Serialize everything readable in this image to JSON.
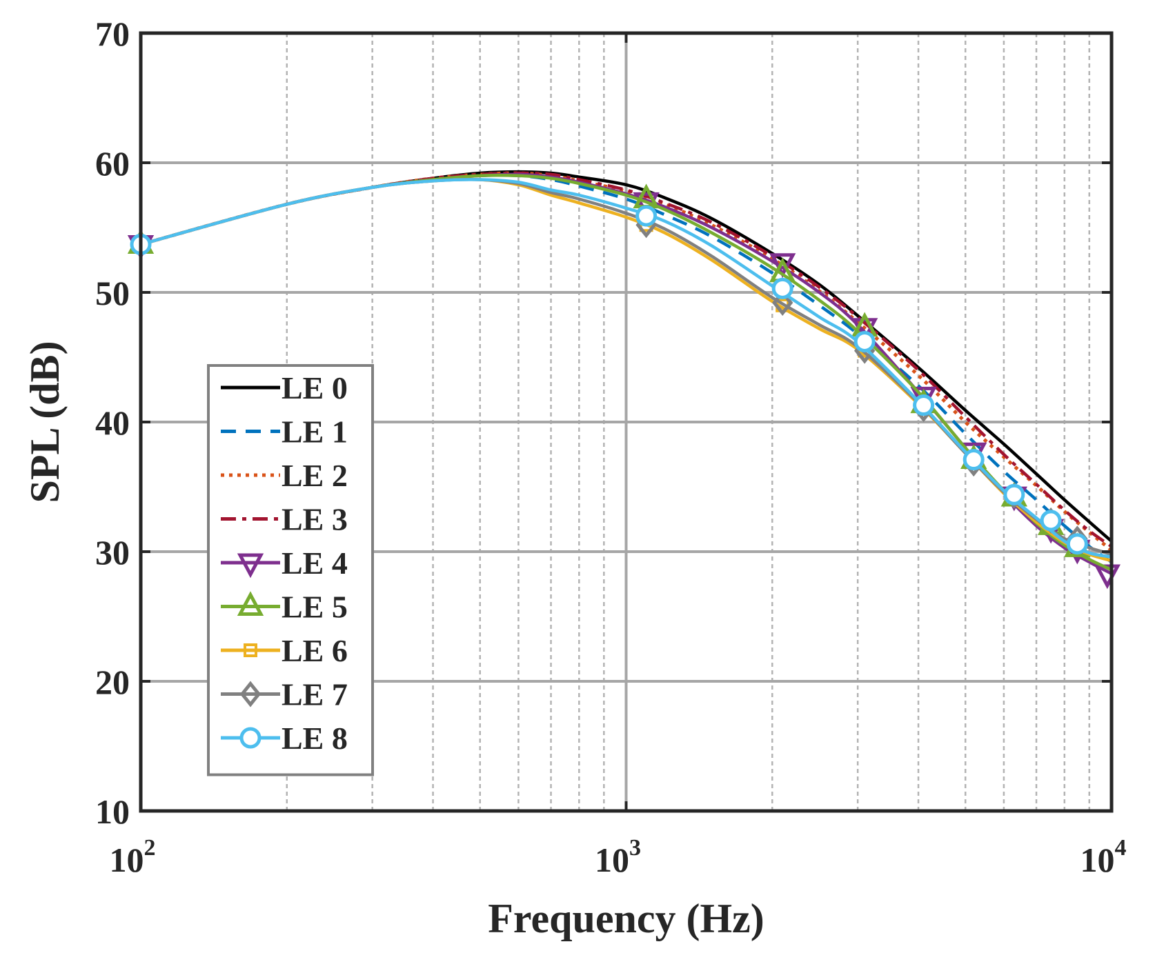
{
  "chart_data": {
    "type": "line",
    "title": "",
    "xlabel": "Frequency (Hz)",
    "ylabel": "SPL (dB)",
    "xscale": "log",
    "xlim": [
      100,
      10000
    ],
    "ylim": [
      10,
      70
    ],
    "xticks": [
      {
        "value": 100,
        "base": "10",
        "exp": "2"
      },
      {
        "value": 1000,
        "base": "10",
        "exp": "3"
      },
      {
        "value": 10000,
        "base": "10",
        "exp": "4"
      }
    ],
    "yticks": [
      10,
      20,
      30,
      40,
      50,
      60,
      70
    ],
    "grid": true,
    "minor_grid": true,
    "legend_position": "lower-left",
    "series": [
      {
        "name": "LE 0",
        "color": "#000000",
        "dash": "solid",
        "marker": "none",
        "x": [
          100,
          200,
          300,
          400,
          500,
          600,
          700,
          800,
          1000,
          1200,
          1500,
          2000,
          2500,
          3000,
          4000,
          5000,
          6000,
          7000,
          8000,
          9000,
          10000
        ],
        "y": [
          53.7,
          56.8,
          58.1,
          58.8,
          59.2,
          59.3,
          59.2,
          58.9,
          58.3,
          57.3,
          55.7,
          53.0,
          50.6,
          48.2,
          44.2,
          40.9,
          38.3,
          36.0,
          34.0,
          32.3,
          30.8
        ],
        "mx": [],
        "my": []
      },
      {
        "name": "LE 1",
        "color": "#0072BD",
        "dash": "dashed",
        "marker": "none",
        "x": [
          100,
          200,
          300,
          400,
          500,
          600,
          700,
          800,
          1000,
          1200,
          1500,
          2000,
          2500,
          3000,
          4000,
          5000,
          6000,
          7000,
          8000,
          9000,
          10000
        ],
        "y": [
          53.7,
          56.8,
          58.1,
          58.7,
          59.0,
          59.0,
          58.7,
          58.2,
          57.2,
          56.0,
          54.3,
          51.5,
          49.0,
          46.8,
          42.8,
          39.1,
          36.2,
          34.0,
          32.0,
          30.4,
          29.2
        ],
        "mx": [],
        "my": []
      },
      {
        "name": "LE 2",
        "color": "#D95319",
        "dash": "dotted",
        "marker": "none",
        "x": [
          100,
          200,
          300,
          400,
          500,
          600,
          700,
          800,
          1000,
          1200,
          1500,
          2000,
          2500,
          3000,
          4000,
          5000,
          6000,
          7000,
          8000,
          9000,
          10000
        ],
        "y": [
          53.7,
          56.8,
          58.1,
          58.8,
          59.1,
          59.2,
          59.0,
          58.6,
          57.8,
          56.8,
          55.2,
          52.6,
          50.1,
          47.7,
          43.6,
          40.0,
          37.3,
          35.1,
          33.1,
          31.5,
          30.1
        ],
        "mx": [],
        "my": []
      },
      {
        "name": "LE 3",
        "color": "#A2142F",
        "dash": "dashdot",
        "marker": "none",
        "x": [
          100,
          200,
          300,
          400,
          500,
          600,
          700,
          800,
          1000,
          1200,
          1500,
          2000,
          2500,
          3000,
          4000,
          5000,
          6000,
          7000,
          8000,
          9000,
          10000
        ],
        "y": [
          53.7,
          56.8,
          58.1,
          58.8,
          59.1,
          59.2,
          59.1,
          58.7,
          57.9,
          56.9,
          55.4,
          52.8,
          50.4,
          48.1,
          44.0,
          40.4,
          37.5,
          35.2,
          33.2,
          31.6,
          30.4
        ],
        "mx": [],
        "my": []
      },
      {
        "name": "LE 4",
        "color": "#7E2F8E",
        "dash": "solid",
        "marker": "triangle-down",
        "x": [
          100,
          200,
          300,
          400,
          500,
          600,
          700,
          800,
          1000,
          1200,
          1500,
          2000,
          2500,
          3000,
          4000,
          5000,
          6000,
          7000,
          8000,
          9000,
          10000
        ],
        "y": [
          53.7,
          56.8,
          58.1,
          58.7,
          59.0,
          59.1,
          58.9,
          58.5,
          57.6,
          56.6,
          55.0,
          52.4,
          50.0,
          47.5,
          42.3,
          38.0,
          34.5,
          32.0,
          30.3,
          29.2,
          28.3
        ],
        "mx": [
          100,
          1100,
          2100,
          3100,
          4100,
          5200,
          6300,
          7500,
          8500,
          9800
        ],
        "my": [
          53.7,
          57.0,
          52.3,
          47.3,
          42.0,
          37.7,
          34.3,
          31.8,
          30.2,
          28.3
        ]
      },
      {
        "name": "LE 5",
        "color": "#77AC30",
        "dash": "solid",
        "marker": "triangle-up",
        "x": [
          100,
          200,
          300,
          400,
          500,
          600,
          700,
          800,
          1000,
          1200,
          1500,
          2000,
          2500,
          3000,
          4000,
          5000,
          6000,
          7000,
          8000,
          9000,
          10000
        ],
        "y": [
          53.7,
          56.8,
          58.1,
          58.7,
          59.0,
          59.0,
          58.8,
          58.4,
          57.5,
          56.4,
          54.6,
          51.9,
          49.4,
          47.0,
          42.3,
          38.0,
          34.7,
          32.2,
          30.5,
          29.4,
          28.6
        ],
        "mx": [
          100,
          1100,
          2100,
          3100,
          4100,
          5200,
          6300,
          7500,
          8500
        ],
        "my": [
          53.7,
          57.2,
          51.5,
          47.3,
          41.4,
          37.1,
          34.2,
          32.0,
          30.3
        ]
      },
      {
        "name": "LE 6",
        "color": "#EDB120",
        "dash": "solid",
        "marker": "square",
        "x": [
          100,
          200,
          300,
          400,
          500,
          600,
          700,
          800,
          1000,
          1200,
          1500,
          2000,
          2500,
          3000,
          4000,
          5000,
          6000,
          7000,
          8000,
          9000,
          10000
        ],
        "y": [
          53.7,
          56.8,
          58.1,
          58.6,
          58.7,
          58.3,
          57.5,
          56.9,
          55.8,
          54.6,
          52.5,
          49.3,
          47.2,
          45.6,
          41.4,
          37.6,
          34.5,
          32.3,
          30.7,
          29.8,
          29.3
        ],
        "mx": [
          100,
          1100,
          2100,
          3100,
          4100,
          5200,
          6300,
          7500,
          8500
        ],
        "my": [
          53.7,
          55.2,
          49.0,
          45.5,
          41.2,
          37.0,
          34.5,
          32.3,
          30.7
        ]
      },
      {
        "name": "LE 7",
        "color": "#808080",
        "dash": "solid",
        "marker": "diamond",
        "x": [
          100,
          200,
          300,
          400,
          500,
          600,
          700,
          800,
          1000,
          1200,
          1500,
          2000,
          2500,
          3000,
          4000,
          5000,
          6000,
          7000,
          8000,
          9000,
          10000
        ],
        "y": [
          53.7,
          56.8,
          58.1,
          58.6,
          58.7,
          58.4,
          57.7,
          57.2,
          56.1,
          54.9,
          52.8,
          49.6,
          47.5,
          45.8,
          41.5,
          37.6,
          34.6,
          32.5,
          31.0,
          30.3,
          29.8
        ],
        "mx": [
          100,
          1100,
          2100,
          3100,
          4100,
          5200,
          6300,
          7500,
          8500
        ],
        "my": [
          53.7,
          55.2,
          49.2,
          45.5,
          41.0,
          36.8,
          34.3,
          32.4,
          31.0
        ]
      },
      {
        "name": "LE 8",
        "color": "#4DBEEE",
        "dash": "solid",
        "marker": "circle",
        "x": [
          100,
          200,
          300,
          400,
          500,
          600,
          700,
          800,
          1000,
          1200,
          1500,
          2000,
          2500,
          3000,
          4000,
          5000,
          6000,
          7000,
          8000,
          9000,
          10000
        ],
        "y": [
          53.7,
          56.8,
          58.1,
          58.6,
          58.7,
          58.5,
          57.9,
          57.5,
          56.5,
          55.5,
          53.6,
          50.5,
          48.1,
          46.2,
          41.6,
          37.7,
          34.7,
          32.6,
          30.8,
          29.9,
          29.6
        ],
        "mx": [
          100,
          1100,
          2100,
          3100,
          4100,
          5200,
          6300,
          7500,
          8500
        ],
        "my": [
          53.7,
          55.9,
          50.3,
          46.2,
          41.3,
          37.1,
          34.4,
          32.4,
          30.6
        ]
      }
    ]
  }
}
